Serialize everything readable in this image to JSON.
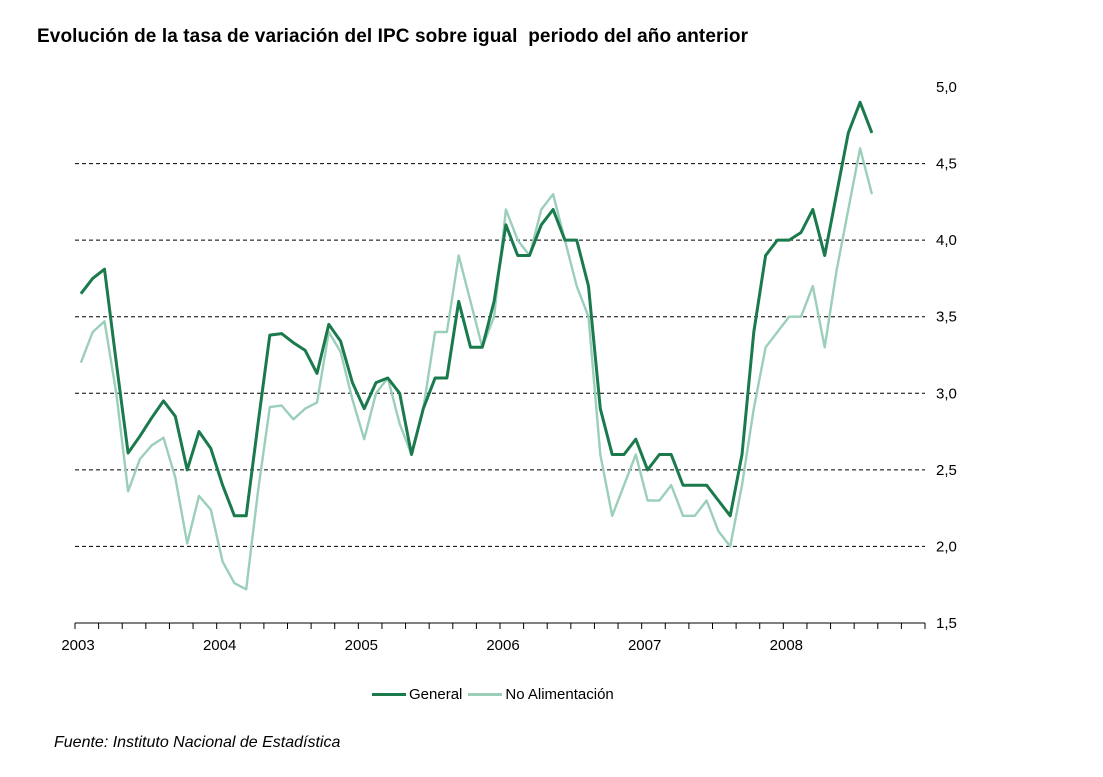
{
  "chart_data": {
    "type": "line",
    "title": "Evolución de la tasa de variación del IPC sobre igual  periodo del año anterior",
    "source": "Fuente: Instituto Nacional de Estadística",
    "x_start": "2003-01",
    "x_end": "2008-12",
    "x_tick_labels": [
      "2003",
      "2004",
      "2005",
      "2006",
      "2007",
      "2008"
    ],
    "y_tick_labels": [
      "1,5",
      "2,0",
      "2,5",
      "3,0",
      "3,5",
      "4,0",
      "4,5",
      "5,0"
    ],
    "y_ticks": [
      1.5,
      2.0,
      2.5,
      3.0,
      3.5,
      4.0,
      4.5,
      5.0
    ],
    "ylim": [
      1.5,
      5.0
    ],
    "y_axis_position": "right",
    "grid": "horizontal dashed",
    "legend_position": "bottom-center",
    "series": [
      {
        "name": "General",
        "color": "#1a7a4c",
        "values": [
          3.65,
          3.75,
          3.81,
          3.2,
          2.61,
          2.72,
          2.84,
          2.95,
          2.85,
          2.5,
          2.75,
          2.64,
          2.4,
          2.2,
          2.2,
          2.8,
          3.38,
          3.39,
          3.33,
          3.28,
          3.13,
          3.45,
          3.34,
          3.07,
          2.9,
          3.07,
          3.1,
          3.0,
          2.6,
          2.9,
          3.1,
          3.1,
          3.6,
          3.3,
          3.3,
          3.6,
          4.1,
          3.9,
          3.9,
          4.1,
          4.2,
          4.0,
          4.0,
          3.7,
          2.9,
          2.6,
          2.6,
          2.7,
          2.5,
          2.6,
          2.6,
          2.4,
          2.4,
          2.4,
          2.3,
          2.2,
          2.6,
          3.4,
          3.9,
          4.0,
          4.0,
          4.05,
          4.2,
          3.9,
          4.3,
          4.7,
          4.9,
          4.7
        ]
      },
      {
        "name": "No Alimentación",
        "color": "#9bcfba",
        "values": [
          3.2,
          3.4,
          3.47,
          3.0,
          2.36,
          2.57,
          2.66,
          2.71,
          2.45,
          2.02,
          2.33,
          2.24,
          1.9,
          1.76,
          1.72,
          2.36,
          2.91,
          2.92,
          2.83,
          2.9,
          2.94,
          3.4,
          3.27,
          2.96,
          2.7,
          3.0,
          3.1,
          2.8,
          2.6,
          2.9,
          3.4,
          3.4,
          3.9,
          3.6,
          3.3,
          3.5,
          4.2,
          4.0,
          3.9,
          4.2,
          4.3,
          4.0,
          3.7,
          3.5,
          2.6,
          2.2,
          2.4,
          2.6,
          2.3,
          2.3,
          2.4,
          2.2,
          2.2,
          2.3,
          2.1,
          2.0,
          2.4,
          2.9,
          3.3,
          3.4,
          3.5,
          3.5,
          3.7,
          3.3,
          3.8,
          4.2,
          4.6,
          4.3
        ]
      }
    ]
  }
}
